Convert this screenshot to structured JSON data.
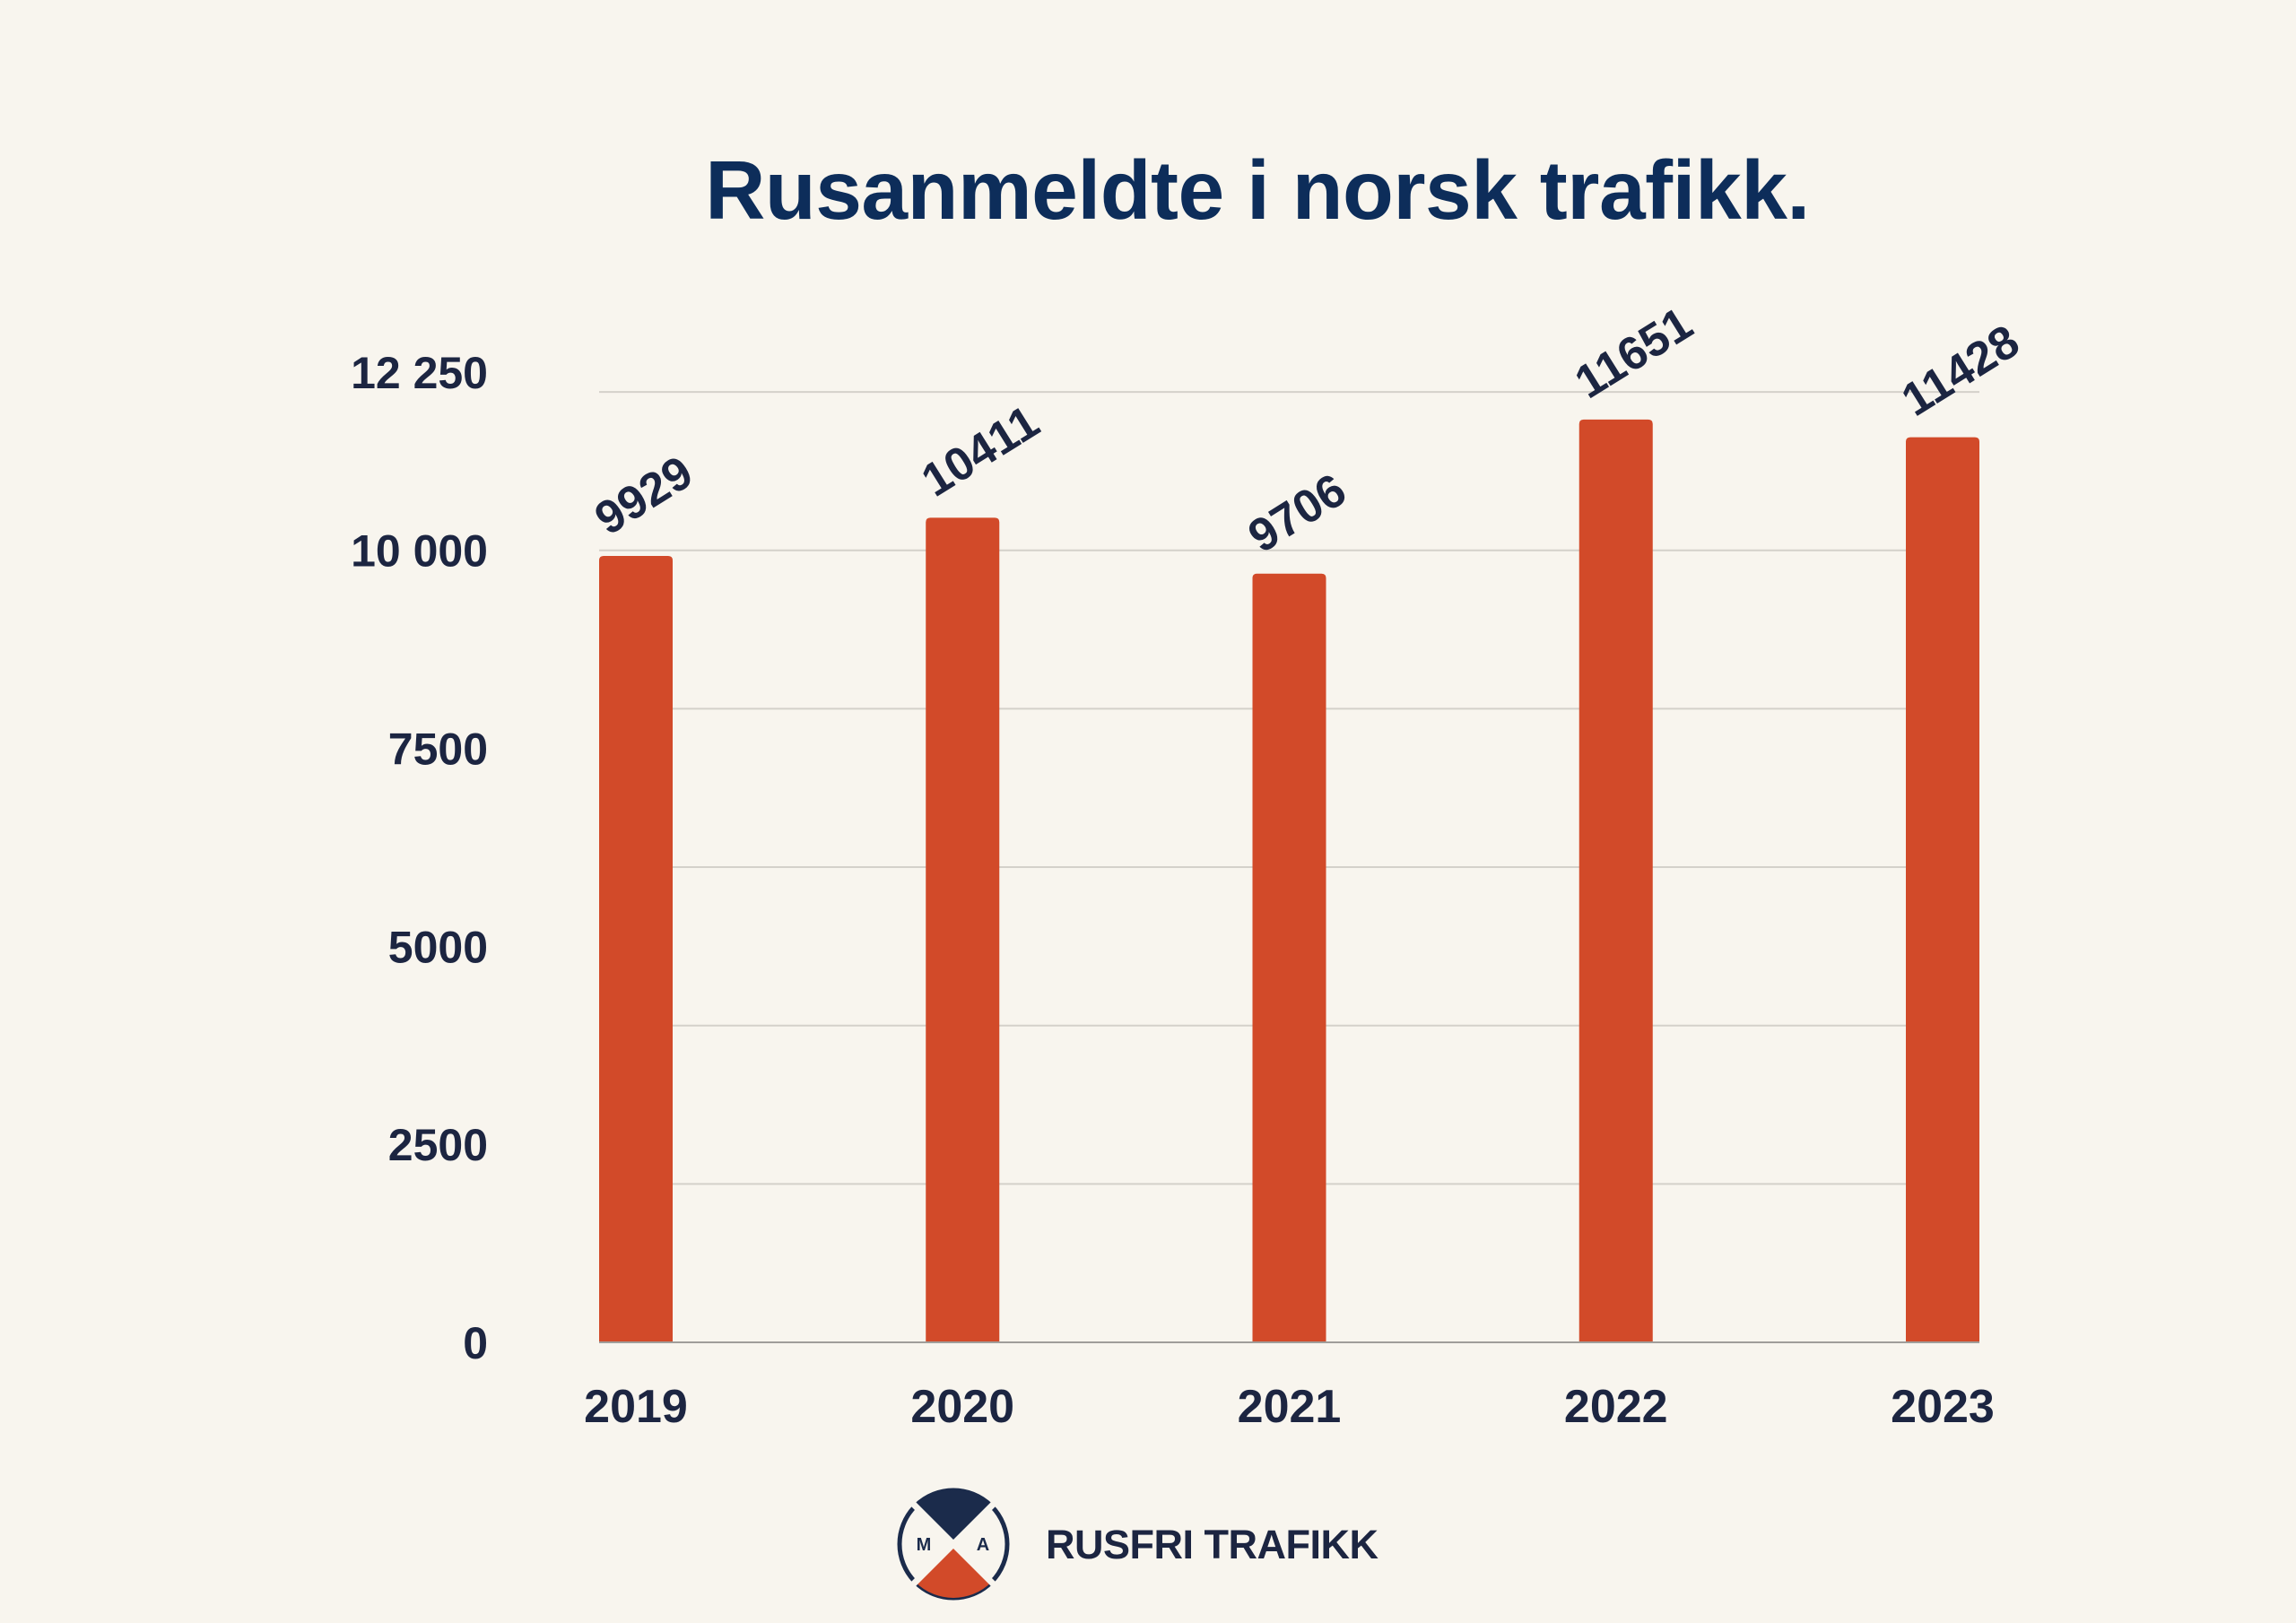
{
  "colors": {
    "background": "#f8f5ee",
    "title": "#0d2d5a",
    "text": "#1c2541",
    "bar": "#d24a29",
    "grid": "#d4d1ca",
    "axis": "#a09e9a",
    "logo_navy": "#1b2b4b",
    "logo_orange": "#d24a29"
  },
  "chart_data": {
    "type": "bar",
    "title": "Rusanmeldte i norsk trafikk.",
    "categories": [
      "2019",
      "2020",
      "2021",
      "2022",
      "2023"
    ],
    "values": [
      9929,
      10411,
      9706,
      11651,
      11428
    ],
    "ylim": [
      0,
      12250
    ],
    "yticks": [
      0,
      2500,
      5000,
      7500,
      10000,
      12250
    ],
    "ytick_labels": [
      "0",
      "2500",
      "5000",
      "7500",
      "10 000",
      "12 250"
    ],
    "grid": true,
    "grid_step": 2000,
    "legend": "none"
  },
  "brand": {
    "name": "RUSFRI TRAFIKK",
    "logo_icon": "rusfri-trafikk-emblem-icon",
    "logo_letters": [
      "M",
      "A"
    ]
  }
}
